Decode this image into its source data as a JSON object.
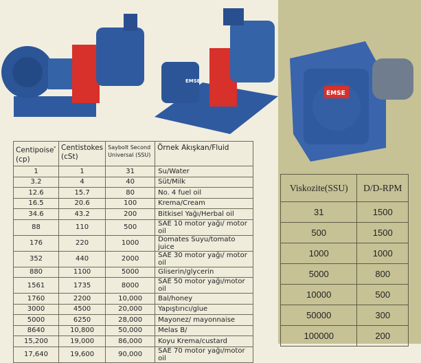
{
  "viscosity_table": {
    "headers": [
      "Centipoise",
      "(cp)",
      "Centistokes",
      "(cSt)",
      "Saybolt Second",
      "Universal (SSU)",
      "Örnek Akışkan/Fluid"
    ],
    "header_mark": "*",
    "rows": [
      [
        "1",
        "1",
        "31",
        "Su/Water"
      ],
      [
        "3.2",
        "4",
        "40",
        "Süt/Milk"
      ],
      [
        "12.6",
        "15.7",
        "80",
        "No. 4 fuel oil"
      ],
      [
        "16.5",
        "20.6",
        "100",
        "Krema/Cream"
      ],
      [
        "34.6",
        "43.2",
        "200",
        "Bitkisel Yağı/Herbal oil"
      ],
      [
        "88",
        "110",
        "500",
        "SAE 10 motor yağı/ motor oil"
      ],
      [
        "176",
        "220",
        "1000",
        "Domates Suyu/tomato juice"
      ],
      [
        "352",
        "440",
        "2000",
        "SAE 30 motor yağı/ motor oil"
      ],
      [
        "880",
        "1100",
        "5000",
        "Gliserin/glycerin"
      ],
      [
        "1561",
        "1735",
        "8000",
        "SAE 50 motor yağı/motor oil"
      ],
      [
        "1760",
        "2200",
        "10,000",
        "Bal/honey"
      ],
      [
        "3000",
        "4500",
        "20,000",
        "Yapıştırıcı/glue"
      ],
      [
        "5000",
        "6250",
        "28,000",
        "Mayonez/ mayonnaise"
      ],
      [
        "8640",
        "10,800",
        "50,000",
        "Melas B/"
      ],
      [
        "15,200",
        "19,000",
        "86,000",
        "Koyu Krema/custard"
      ],
      [
        "17,640",
        "19,600",
        "90,000",
        "SAE 70 motor yağı/motor oil"
      ]
    ]
  },
  "rpm_table": {
    "headers": [
      "Viskozite(SSU)",
      "D/D-RPM"
    ],
    "rows": [
      [
        "31",
        "1500"
      ],
      [
        "500",
        "1500"
      ],
      [
        "1000",
        "1000"
      ],
      [
        "5000",
        "800"
      ],
      [
        "10000",
        "500"
      ],
      [
        "50000",
        "300"
      ],
      [
        "100000",
        "200"
      ]
    ]
  },
  "pump_logo": "EMSE",
  "colors": {
    "pump_blue": "#2f5aa0",
    "coupling_red": "#d8302a",
    "left_bg": "#f1eee0",
    "right_bg": "#c6c296"
  }
}
